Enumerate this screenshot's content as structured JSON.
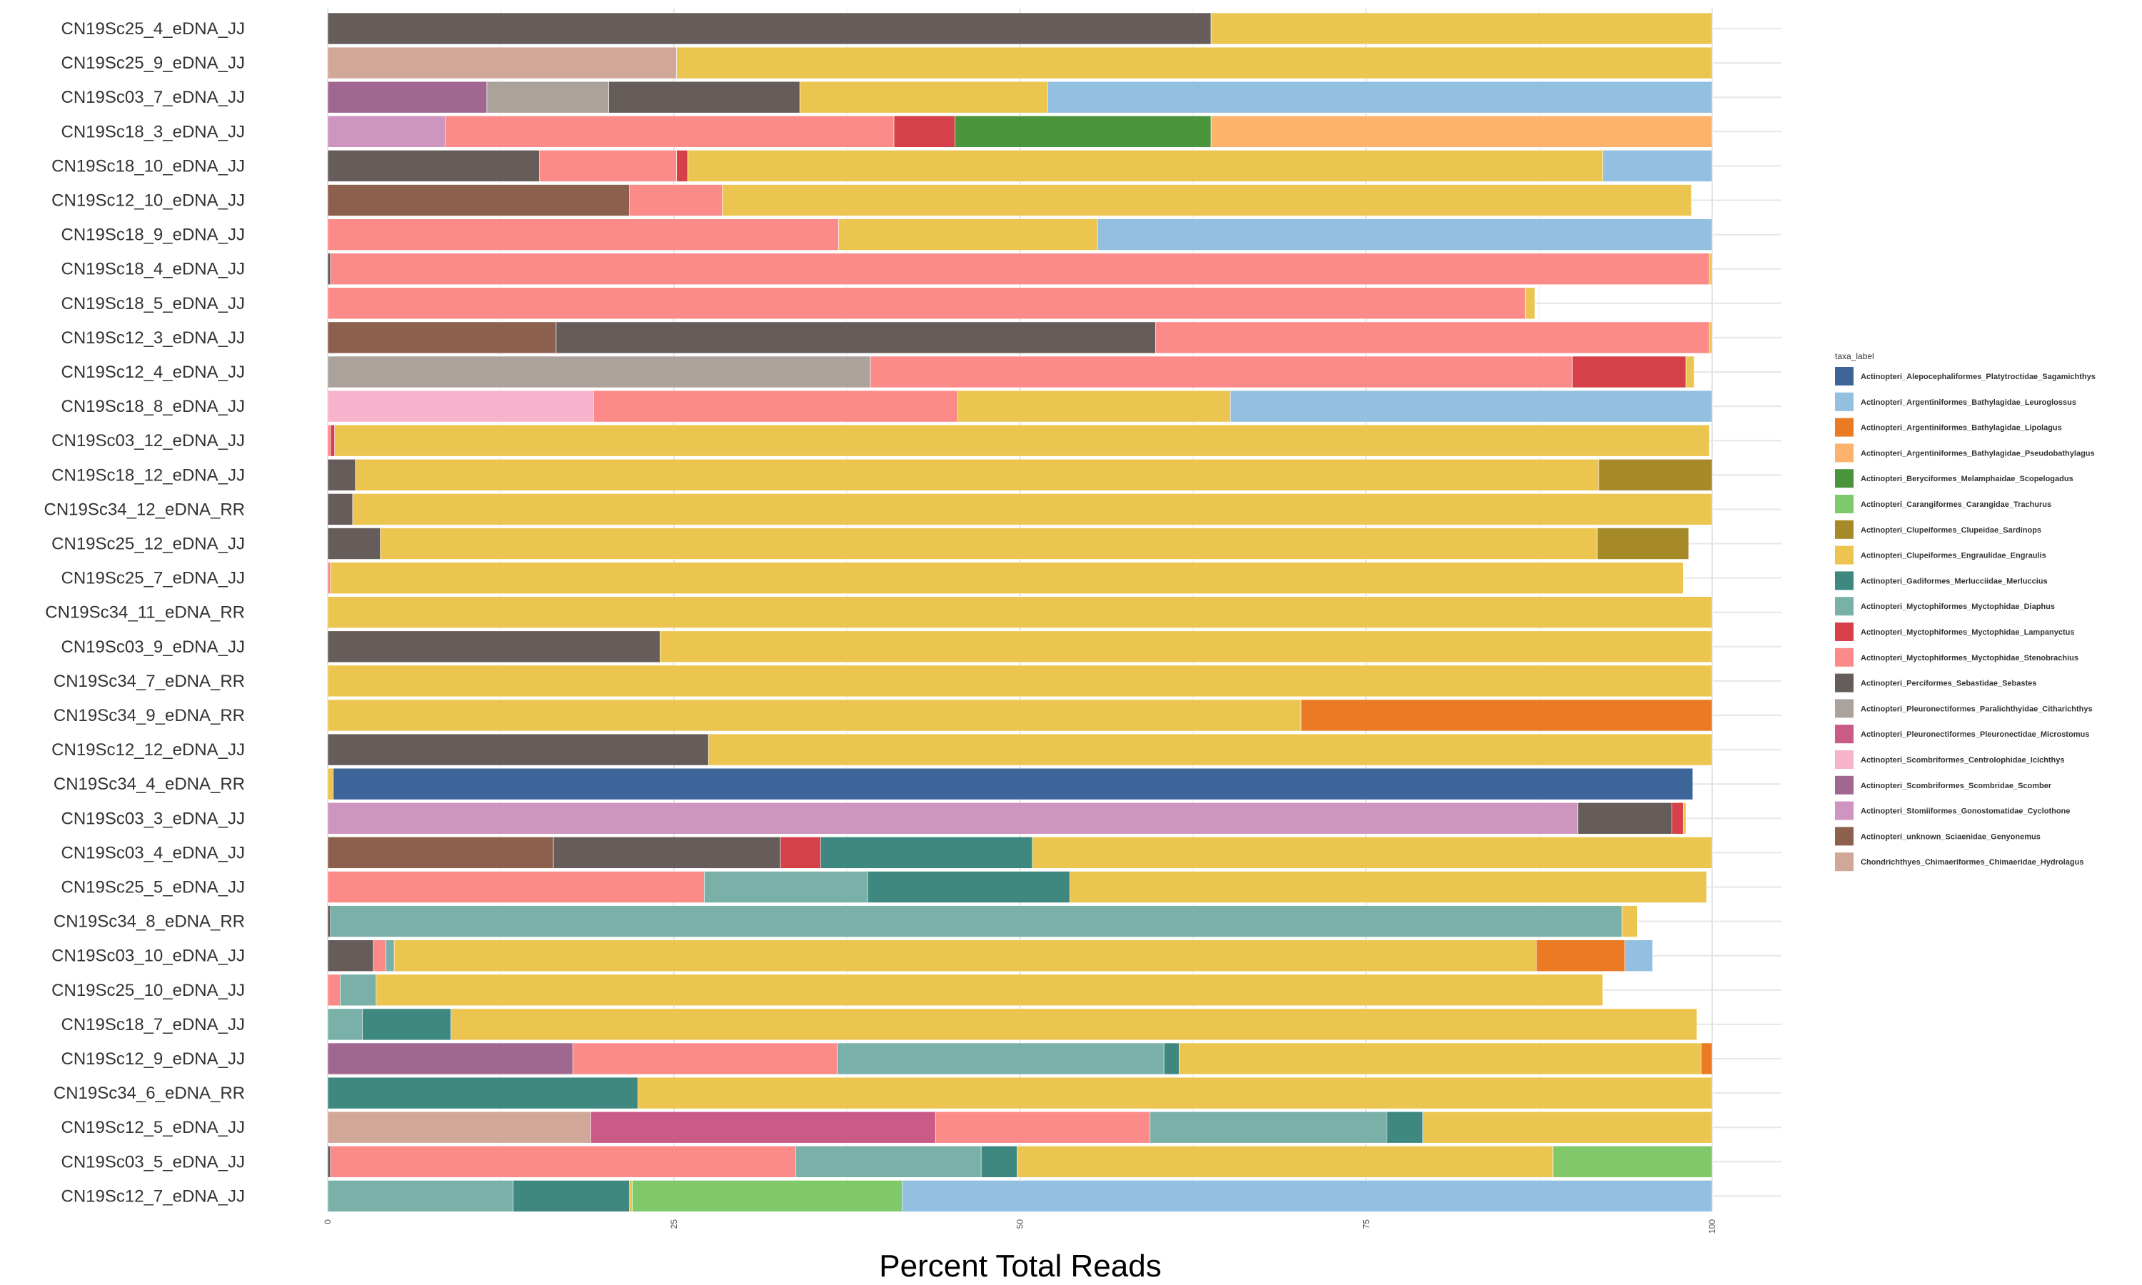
{
  "chart_data": {
    "type": "bar",
    "orientation": "horizontal",
    "stacked": true,
    "xlabel": "Percent Total Reads",
    "ylabel": "",
    "xlim": [
      0,
      100
    ],
    "x_ticks": [
      "0",
      "25",
      "50",
      "75",
      "100"
    ],
    "grid": true,
    "legend_title": "taxa_label",
    "legend_position": "right",
    "taxa": [
      {
        "name": "Actinopteri_Alepocephaliformes_Platytroctidae_Sagamichthys",
        "color": "#3d6599"
      },
      {
        "name": "Actinopteri_Argentiniformes_Bathylagidae_Leuroglossus",
        "color": "#93bfe0"
      },
      {
        "name": "Actinopteri_Argentiniformes_Bathylagidae_Lipolagus",
        "color": "#eb7a24"
      },
      {
        "name": "Actinopteri_Argentiniformes_Bathylagidae_Pseudobathylagus",
        "color": "#fdb36c"
      },
      {
        "name": "Actinopteri_Beryciformes_Melamphaidae_Scopelogadus",
        "color": "#4a943b"
      },
      {
        "name": "Actinopteri_Carangiformes_Carangidae_Trachurus",
        "color": "#7fc96b"
      },
      {
        "name": "Actinopteri_Clupeiformes_Clupeidae_Sardinops",
        "color": "#a68a28"
      },
      {
        "name": "Actinopteri_Clupeiformes_Engraulidae_Engraulis",
        "color": "#ecc550"
      },
      {
        "name": "Actinopteri_Gadiformes_Merlucciidae_Merluccius",
        "color": "#3e8880"
      },
      {
        "name": "Actinopteri_Myctophiformes_Myctophidae_Diaphus",
        "color": "#79b0a8"
      },
      {
        "name": "Actinopteri_Myctophiformes_Myctophidae_Lampanyctus",
        "color": "#d64048"
      },
      {
        "name": "Actinopteri_Myctophiformes_Myctophidae_Stenobrachius",
        "color": "#fc8a88"
      },
      {
        "name": "Actinopteri_Perciformes_Sebastidae_Sebastes",
        "color": "#665c5a"
      },
      {
        "name": "Actinopteri_Pleuronectiformes_Paralichthyidae_Citharichthys",
        "color": "#aca29c"
      },
      {
        "name": "Actinopteri_Pleuronectiformes_Pleuronectidae_Microstomus",
        "color": "#c95b86"
      },
      {
        "name": "Actinopteri_Scombriformes_Centrolophidae_Icichthys",
        "color": "#f7b3cb"
      },
      {
        "name": "Actinopteri_Scombriformes_Scombridae_Scomber",
        "color": "#a06891"
      },
      {
        "name": "Actinopteri_Stomiiformes_Gonostomatidae_Cyclothone",
        "color": "#cd95bf"
      },
      {
        "name": "Actinopteri_unknown_Sciaenidae_Genyonemus",
        "color": "#8c604c"
      },
      {
        "name": "Chondrichthyes_Chimaeriformes_Chimaeridae_Hydrolagus",
        "color": "#d1a797"
      }
    ],
    "samples": [
      {
        "name": "CN19Sc25_4_eDNA_JJ",
        "segments": [
          [
            "Actinopteri_Perciformes_Sebastidae_Sebastes",
            63.8
          ],
          [
            "Actinopteri_Clupeiformes_Engraulidae_Engraulis",
            36.2
          ]
        ]
      },
      {
        "name": "CN19Sc25_9_eDNA_JJ",
        "segments": [
          [
            "Chondrichthyes_Chimaeriformes_Chimaeridae_Hydrolagus",
            25.2
          ],
          [
            "Actinopteri_Clupeiformes_Engraulidae_Engraulis",
            74.8
          ]
        ]
      },
      {
        "name": "CN19Sc03_7_eDNA_JJ",
        "segments": [
          [
            "Actinopteri_Scombriformes_Scombridae_Scomber",
            11.5
          ],
          [
            "Actinopteri_Pleuronectiformes_Paralichthyidae_Citharichthys",
            8.8
          ],
          [
            "Actinopteri_Perciformes_Sebastidae_Sebastes",
            13.8
          ],
          [
            "Actinopteri_Clupeiformes_Engraulidae_Engraulis",
            17.9
          ],
          [
            "Actinopteri_Argentiniformes_Bathylagidae_Leuroglossus",
            48.0
          ]
        ]
      },
      {
        "name": "CN19Sc18_3_eDNA_JJ",
        "segments": [
          [
            "Actinopteri_Stomiiformes_Gonostomatidae_Cyclothone",
            8.5
          ],
          [
            "Actinopteri_Myctophiformes_Myctophidae_Stenobrachius",
            32.4
          ],
          [
            "Actinopteri_Myctophiformes_Myctophidae_Lampanyctus",
            4.4
          ],
          [
            "Actinopteri_Beryciformes_Melamphaidae_Scopelogadus",
            18.5
          ],
          [
            "Actinopteri_Argentiniformes_Bathylagidae_Pseudobathylagus",
            36.2
          ]
        ]
      },
      {
        "name": "CN19Sc18_10_eDNA_JJ",
        "segments": [
          [
            "Actinopteri_Perciformes_Sebastidae_Sebastes",
            15.3
          ],
          [
            "Actinopteri_Myctophiformes_Myctophidae_Stenobrachius",
            9.9
          ],
          [
            "Actinopteri_Myctophiformes_Myctophidae_Lampanyctus",
            0.8
          ],
          [
            "Actinopteri_Clupeiformes_Engraulidae_Engraulis",
            66.1
          ],
          [
            "Actinopteri_Argentiniformes_Bathylagidae_Leuroglossus",
            7.9
          ]
        ]
      },
      {
        "name": "CN19Sc12_10_eDNA_JJ",
        "segments": [
          [
            "Actinopteri_unknown_Sciaenidae_Genyonemus",
            21.8
          ],
          [
            "Actinopteri_Myctophiformes_Myctophidae_Stenobrachius",
            6.7
          ],
          [
            "Actinopteri_Clupeiformes_Engraulidae_Engraulis",
            70.0
          ]
        ]
      },
      {
        "name": "CN19Sc18_9_eDNA_JJ",
        "segments": [
          [
            "Actinopteri_Myctophiformes_Myctophidae_Stenobrachius",
            36.9
          ],
          [
            "Actinopteri_Clupeiformes_Engraulidae_Engraulis",
            18.7
          ],
          [
            "Actinopteri_Argentiniformes_Bathylagidae_Leuroglossus",
            44.4
          ]
        ]
      },
      {
        "name": "CN19Sc18_4_eDNA_JJ",
        "segments": [
          [
            "Actinopteri_Perciformes_Sebastidae_Sebastes",
            0.2
          ],
          [
            "Actinopteri_Myctophiformes_Myctophidae_Stenobrachius",
            99.6
          ],
          [
            "Actinopteri_Clupeiformes_Engraulidae_Engraulis",
            0.2
          ]
        ]
      },
      {
        "name": "CN19Sc18_5_eDNA_JJ",
        "segments": [
          [
            "Actinopteri_Myctophiformes_Myctophidae_Stenobrachius",
            86.5
          ],
          [
            "Actinopteri_Clupeiformes_Engraulidae_Engraulis",
            0.7
          ]
        ]
      },
      {
        "name": "CN19Sc12_3_eDNA_JJ",
        "segments": [
          [
            "Actinopteri_unknown_Sciaenidae_Genyonemus",
            16.5
          ],
          [
            "Actinopteri_Perciformes_Sebastidae_Sebastes",
            43.3
          ],
          [
            "Actinopteri_Myctophiformes_Myctophidae_Stenobrachius",
            40.0
          ],
          [
            "Actinopteri_Clupeiformes_Engraulidae_Engraulis",
            0.2
          ]
        ]
      },
      {
        "name": "CN19Sc12_4_eDNA_JJ",
        "segments": [
          [
            "Actinopteri_Pleuronectiformes_Paralichthyidae_Citharichthys",
            39.2
          ],
          [
            "Actinopteri_Myctophiformes_Myctophidae_Stenobrachius",
            50.7
          ],
          [
            "Actinopteri_Myctophiformes_Myctophidae_Lampanyctus",
            8.2
          ],
          [
            "Actinopteri_Clupeiformes_Engraulidae_Engraulis",
            0.6
          ]
        ]
      },
      {
        "name": "CN19Sc18_8_eDNA_JJ",
        "segments": [
          [
            "Actinopteri_Scombriformes_Centrolophidae_Icichthys",
            19.2
          ],
          [
            "Actinopteri_Myctophiformes_Myctophidae_Stenobrachius",
            26.3
          ],
          [
            "Actinopteri_Clupeiformes_Engraulidae_Engraulis",
            19.7
          ],
          [
            "Actinopteri_Argentiniformes_Bathylagidae_Leuroglossus",
            34.8
          ]
        ]
      },
      {
        "name": "CN19Sc03_12_eDNA_JJ",
        "segments": [
          [
            "Actinopteri_Myctophiformes_Myctophidae_Stenobrachius",
            0.2
          ],
          [
            "Actinopteri_Myctophiformes_Myctophidae_Lampanyctus",
            0.3
          ],
          [
            "Actinopteri_Clupeiformes_Engraulidae_Engraulis",
            99.3
          ]
        ]
      },
      {
        "name": "CN19Sc18_12_eDNA_JJ",
        "segments": [
          [
            "Actinopteri_Perciformes_Sebastidae_Sebastes",
            2.0
          ],
          [
            "Actinopteri_Clupeiformes_Engraulidae_Engraulis",
            89.8
          ],
          [
            "Actinopteri_Clupeiformes_Clupeidae_Sardinops",
            8.2
          ]
        ]
      },
      {
        "name": "CN19Sc34_12_eDNA_RR",
        "segments": [
          [
            "Actinopteri_Perciformes_Sebastidae_Sebastes",
            1.8
          ],
          [
            "Actinopteri_Clupeiformes_Engraulidae_Engraulis",
            98.2
          ]
        ]
      },
      {
        "name": "CN19Sc25_12_eDNA_JJ",
        "segments": [
          [
            "Actinopteri_Perciformes_Sebastidae_Sebastes",
            3.8
          ],
          [
            "Actinopteri_Clupeiformes_Engraulidae_Engraulis",
            87.9
          ],
          [
            "Actinopteri_Clupeiformes_Clupeidae_Sardinops",
            6.6
          ]
        ]
      },
      {
        "name": "CN19Sc25_7_eDNA_JJ",
        "segments": [
          [
            "Actinopteri_Myctophiformes_Myctophidae_Stenobrachius",
            0.2
          ],
          [
            "Actinopteri_Clupeiformes_Engraulidae_Engraulis",
            97.7
          ]
        ]
      },
      {
        "name": "CN19Sc34_11_eDNA_RR",
        "segments": [
          [
            "Actinopteri_Clupeiformes_Engraulidae_Engraulis",
            100.0
          ]
        ]
      },
      {
        "name": "CN19Sc03_9_eDNA_JJ",
        "segments": [
          [
            "Actinopteri_Perciformes_Sebastidae_Sebastes",
            24.0
          ],
          [
            "Actinopteri_Clupeiformes_Engraulidae_Engraulis",
            76.0
          ]
        ]
      },
      {
        "name": "CN19Sc34_7_eDNA_RR",
        "segments": [
          [
            "Actinopteri_Clupeiformes_Engraulidae_Engraulis",
            100.0
          ]
        ]
      },
      {
        "name": "CN19Sc34_9_eDNA_RR",
        "segments": [
          [
            "Actinopteri_Clupeiformes_Engraulidae_Engraulis",
            70.3
          ],
          [
            "Actinopteri_Argentiniformes_Bathylagidae_Lipolagus",
            29.7
          ]
        ]
      },
      {
        "name": "CN19Sc12_12_eDNA_JJ",
        "segments": [
          [
            "Actinopteri_Perciformes_Sebastidae_Sebastes",
            27.5
          ],
          [
            "Actinopteri_Clupeiformes_Engraulidae_Engraulis",
            72.5
          ]
        ]
      },
      {
        "name": "CN19Sc34_4_eDNA_RR",
        "segments": [
          [
            "Actinopteri_Clupeiformes_Engraulidae_Engraulis",
            0.4
          ],
          [
            "Actinopteri_Alepocephaliformes_Platytroctidae_Sagamichthys",
            98.2
          ]
        ]
      },
      {
        "name": "CN19Sc03_3_eDNA_JJ",
        "segments": [
          [
            "Actinopteri_Stomiiformes_Gonostomatidae_Cyclothone",
            90.3
          ],
          [
            "Actinopteri_Perciformes_Sebastidae_Sebastes",
            6.8
          ],
          [
            "Actinopteri_Myctophiformes_Myctophidae_Lampanyctus",
            0.8
          ],
          [
            "Actinopteri_Clupeiformes_Engraulidae_Engraulis",
            0.2
          ]
        ]
      },
      {
        "name": "CN19Sc03_4_eDNA_JJ",
        "segments": [
          [
            "Actinopteri_unknown_Sciaenidae_Genyonemus",
            16.3
          ],
          [
            "Actinopteri_Perciformes_Sebastidae_Sebastes",
            16.4
          ],
          [
            "Actinopteri_Myctophiformes_Myctophidae_Lampanyctus",
            2.9
          ],
          [
            "Actinopteri_Gadiformes_Merlucciidae_Merluccius",
            15.3
          ],
          [
            "Actinopteri_Clupeiformes_Engraulidae_Engraulis",
            49.1
          ]
        ]
      },
      {
        "name": "CN19Sc25_5_eDNA_JJ",
        "segments": [
          [
            "Actinopteri_Myctophiformes_Myctophidae_Stenobrachius",
            27.2
          ],
          [
            "Actinopteri_Myctophiformes_Myctophidae_Diaphus",
            11.8
          ],
          [
            "Actinopteri_Gadiformes_Merlucciidae_Merluccius",
            14.6
          ],
          [
            "Actinopteri_Clupeiformes_Engraulidae_Engraulis",
            46.0
          ]
        ]
      },
      {
        "name": "CN19Sc34_8_eDNA_RR",
        "segments": [
          [
            "Actinopteri_Perciformes_Sebastidae_Sebastes",
            0.2
          ],
          [
            "Actinopteri_Myctophiformes_Myctophidae_Diaphus",
            93.3
          ],
          [
            "Actinopteri_Clupeiformes_Engraulidae_Engraulis",
            1.1
          ]
        ]
      },
      {
        "name": "CN19Sc03_10_eDNA_JJ",
        "segments": [
          [
            "Actinopteri_Perciformes_Sebastidae_Sebastes",
            3.3
          ],
          [
            "Actinopteri_Myctophiformes_Myctophidae_Stenobrachius",
            0.9
          ],
          [
            "Actinopteri_Myctophiformes_Myctophidae_Diaphus",
            0.6
          ],
          [
            "Actinopteri_Clupeiformes_Engraulidae_Engraulis",
            82.5
          ],
          [
            "Actinopteri_Argentiniformes_Bathylagidae_Lipolagus",
            6.4
          ],
          [
            "Actinopteri_Argentiniformes_Bathylagidae_Leuroglossus",
            2.0
          ]
        ]
      },
      {
        "name": "CN19Sc25_10_eDNA_JJ",
        "segments": [
          [
            "Actinopteri_Myctophiformes_Myctophidae_Stenobrachius",
            0.9
          ],
          [
            "Actinopteri_Myctophiformes_Myctophidae_Diaphus",
            2.6
          ],
          [
            "Actinopteri_Clupeiformes_Engraulidae_Engraulis",
            88.6
          ]
        ]
      },
      {
        "name": "CN19Sc18_7_eDNA_JJ",
        "segments": [
          [
            "Actinopteri_Myctophiformes_Myctophidae_Diaphus",
            2.5
          ],
          [
            "Actinopteri_Gadiformes_Merlucciidae_Merluccius",
            6.4
          ],
          [
            "Actinopteri_Clupeiformes_Engraulidae_Engraulis",
            90.0
          ]
        ]
      },
      {
        "name": "CN19Sc12_9_eDNA_JJ",
        "segments": [
          [
            "Actinopteri_Scombriformes_Scombridae_Scomber",
            17.7
          ],
          [
            "Actinopteri_Myctophiformes_Myctophidae_Stenobrachius",
            19.1
          ],
          [
            "Actinopteri_Myctophiformes_Myctophidae_Diaphus",
            23.6
          ],
          [
            "Actinopteri_Gadiformes_Merlucciidae_Merluccius",
            1.1
          ],
          [
            "Actinopteri_Clupeiformes_Engraulidae_Engraulis",
            37.7
          ],
          [
            "Actinopteri_Argentiniformes_Bathylagidae_Lipolagus",
            0.8
          ]
        ]
      },
      {
        "name": "CN19Sc34_6_eDNA_RR",
        "segments": [
          [
            "Actinopteri_Gadiformes_Merlucciidae_Merluccius",
            22.4
          ],
          [
            "Actinopteri_Clupeiformes_Engraulidae_Engraulis",
            77.6
          ]
        ]
      },
      {
        "name": "CN19Sc12_5_eDNA_JJ",
        "segments": [
          [
            "Chondrichthyes_Chimaeriformes_Chimaeridae_Hydrolagus",
            19.0
          ],
          [
            "Actinopteri_Pleuronectiformes_Pleuronectidae_Microstomus",
            24.9
          ],
          [
            "Actinopteri_Myctophiformes_Myctophidae_Stenobrachius",
            15.5
          ],
          [
            "Actinopteri_Myctophiformes_Myctophidae_Diaphus",
            17.1
          ],
          [
            "Actinopteri_Gadiformes_Merlucciidae_Merluccius",
            2.6
          ],
          [
            "Actinopteri_Clupeiformes_Engraulidae_Engraulis",
            20.9
          ]
        ]
      },
      {
        "name": "CN19Sc03_5_eDNA_JJ",
        "segments": [
          [
            "Actinopteri_Perciformes_Sebastidae_Sebastes",
            0.2
          ],
          [
            "Actinopteri_Myctophiformes_Myctophidae_Stenobrachius",
            33.6
          ],
          [
            "Actinopteri_Myctophiformes_Myctophidae_Diaphus",
            13.4
          ],
          [
            "Actinopteri_Gadiformes_Merlucciidae_Merluccius",
            2.6
          ],
          [
            "Actinopteri_Clupeiformes_Engraulidae_Engraulis",
            38.7
          ],
          [
            "Actinopteri_Carangiformes_Carangidae_Trachurus",
            11.5
          ]
        ]
      },
      {
        "name": "CN19Sc12_7_eDNA_JJ",
        "segments": [
          [
            "Actinopteri_Myctophiformes_Myctophidae_Diaphus",
            13.4
          ],
          [
            "Actinopteri_Gadiformes_Merlucciidae_Merluccius",
            8.4
          ],
          [
            "Actinopteri_Clupeiformes_Engraulidae_Engraulis",
            0.2
          ],
          [
            "Actinopteri_Carangiformes_Carangidae_Trachurus",
            19.5
          ],
          [
            "Actinopteri_Argentiniformes_Bathylagidae_Leuroglossus",
            58.5
          ]
        ]
      }
    ]
  }
}
